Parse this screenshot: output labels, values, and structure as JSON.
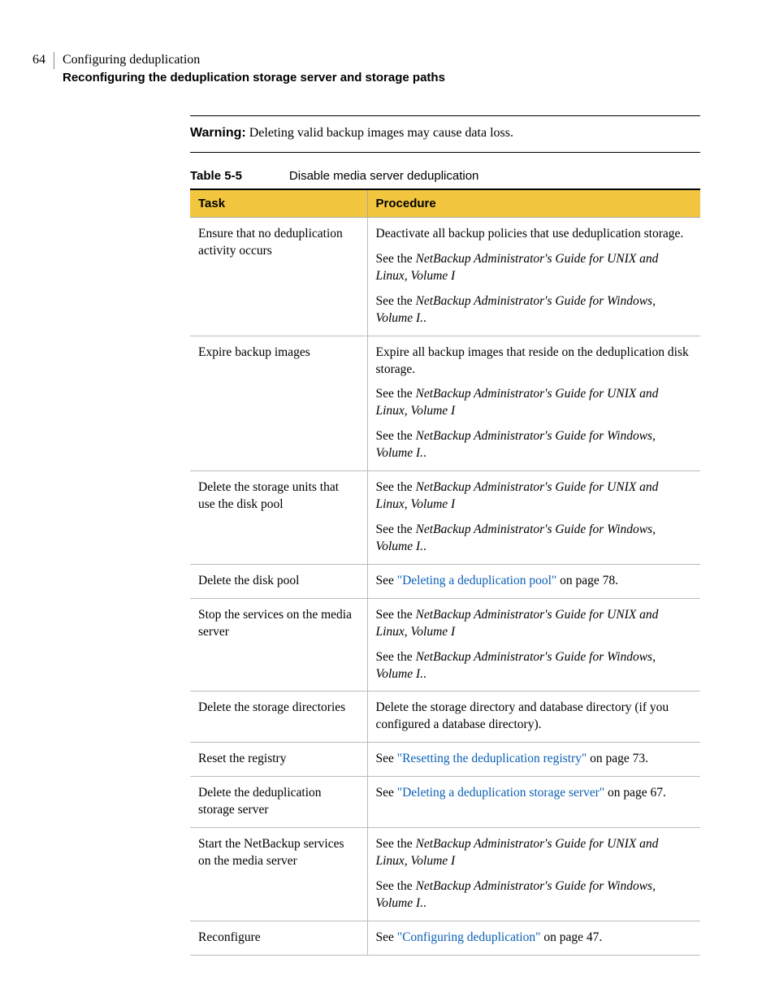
{
  "header": {
    "page_number": "64",
    "chapter_title": "Configuring deduplication",
    "section_title": "Reconfiguring the deduplication storage server and storage paths"
  },
  "warning": {
    "label": "Warning:",
    "text": "Deleting valid backup images may cause data loss."
  },
  "table": {
    "number": "Table 5-5",
    "title": "Disable media server deduplication",
    "columns": {
      "task": "Task",
      "procedure": "Procedure"
    },
    "header_bg": "#f2c63f",
    "rows": [
      {
        "task": "Ensure that no deduplication activity occurs",
        "proc": {
          "p1": "Deactivate all backup policies that use deduplication storage.",
          "p2a": "See the ",
          "p2b": "NetBackup Administrator's Guide for UNIX and Linux, Volume I",
          "p3a": "See the ",
          "p3b": "NetBackup Administrator's Guide for Windows, Volume I.",
          "p3c": "."
        }
      },
      {
        "task": "Expire backup images",
        "proc": {
          "p1": "Expire all backup images that reside on the deduplication disk storage.",
          "p2a": "See the ",
          "p2b": "NetBackup Administrator's Guide for UNIX and Linux, Volume I",
          "p3a": "See the ",
          "p3b": "NetBackup Administrator's Guide for Windows, Volume I.",
          "p3c": "."
        }
      },
      {
        "task": "Delete the storage units that use the disk pool",
        "proc": {
          "p2a": "See the ",
          "p2b": "NetBackup Administrator's Guide for UNIX and Linux, Volume I",
          "p3a": "See the ",
          "p3b": "NetBackup Administrator's Guide for Windows, Volume I.",
          "p3c": "."
        }
      },
      {
        "task": "Delete the disk pool",
        "proc": {
          "see": "See ",
          "link": "\"Deleting a deduplication pool\"",
          "tail": " on page 78."
        }
      },
      {
        "task": "Stop the services on the media server",
        "proc": {
          "p2a": "See the ",
          "p2b": "NetBackup Administrator's Guide for UNIX and Linux, Volume I",
          "p3a": "See the ",
          "p3b": "NetBackup Administrator's Guide for Windows, Volume I.",
          "p3c": "."
        }
      },
      {
        "task": "Delete the storage directories",
        "proc": {
          "p1": "Delete the storage directory and database directory (if you configured a database directory)."
        }
      },
      {
        "task": "Reset the registry",
        "proc": {
          "see": "See ",
          "link": "\"Resetting the deduplication registry\"",
          "tail": " on page 73."
        }
      },
      {
        "task": "Delete the deduplication storage server",
        "proc": {
          "see": "See ",
          "link": "\"Deleting a deduplication storage server\"",
          "tail": " on page 67."
        }
      },
      {
        "task": "Start the NetBackup services on the media server",
        "proc": {
          "p2a": "See the ",
          "p2b": "NetBackup Administrator's Guide for UNIX and Linux, Volume I",
          "p3a": "See the ",
          "p3b": "NetBackup Administrator's Guide for Windows, Volume I.",
          "p3c": "."
        }
      },
      {
        "task": "Reconfigure",
        "proc": {
          "see": "See ",
          "link": "\"Configuring deduplication\"",
          "tail": " on page 47."
        }
      }
    ]
  },
  "colors": {
    "link": "#0a5fb4",
    "header_bg": "#f2c63f"
  }
}
